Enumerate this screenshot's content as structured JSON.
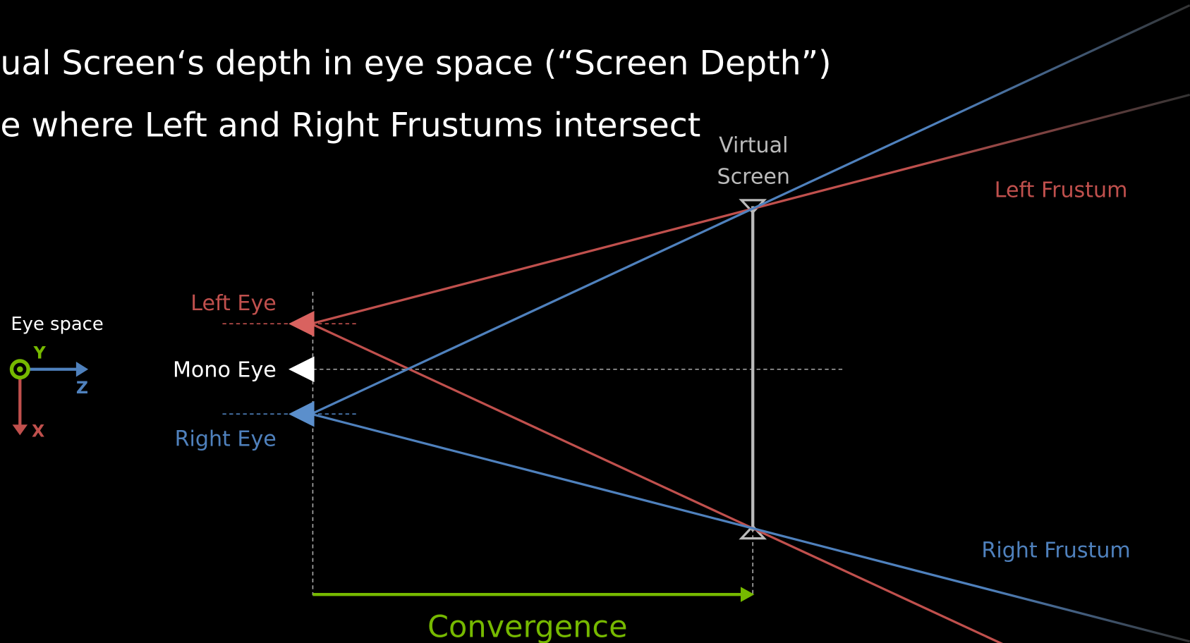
{
  "header": {
    "lines": [
      "ual Screen‘s depth in eye space (“Screen Depth”)",
      "e where Left and Right Frustums intersect"
    ]
  },
  "diagram": {
    "screen_label": [
      "Virtual",
      "Screen"
    ],
    "left_frustum": "Left Frustum",
    "right_frustum": "Right Frustum",
    "left_eye": "Left Eye",
    "mono_eye": "Mono Eye",
    "right_eye": "Right Eye",
    "convergence": "Convergence",
    "axes": {
      "title": "Eye space",
      "y": "Y",
      "z": "Z",
      "x": "X"
    }
  }
}
